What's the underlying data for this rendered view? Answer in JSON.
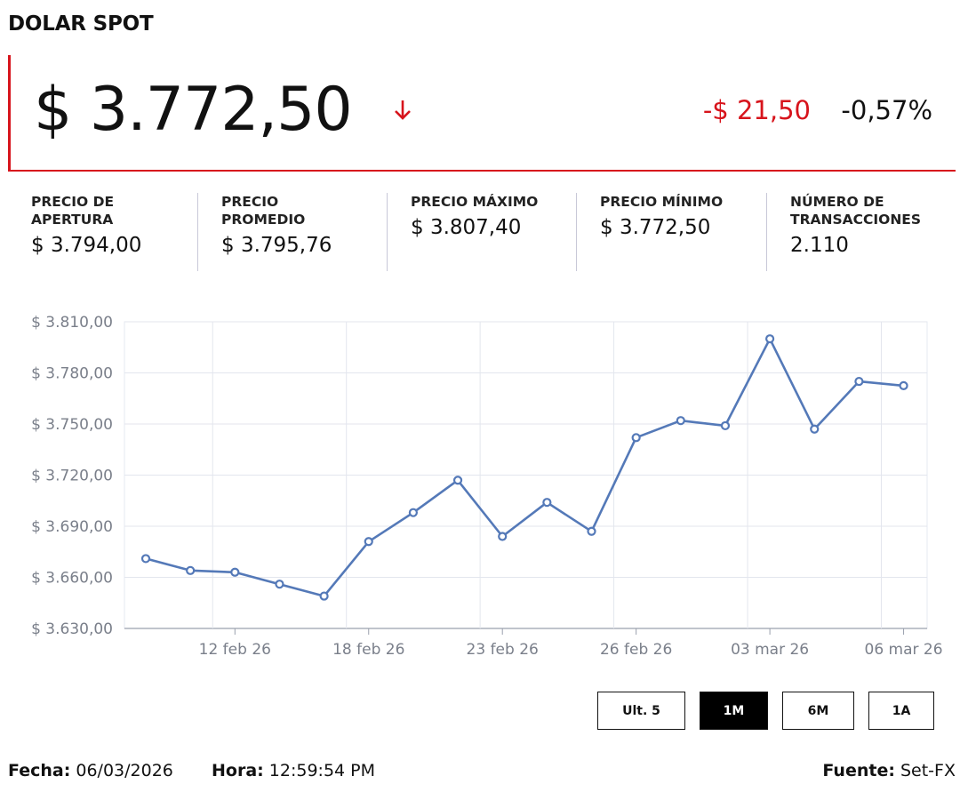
{
  "title": "DOLAR SPOT",
  "quote": {
    "price": "$ 3.772,50",
    "direction_icon": "arrow-down-icon",
    "change_abs": "-$ 21,50",
    "change_pct": "-0,57%",
    "down_color": "#d7141c"
  },
  "stats": [
    {
      "label_line1": "PRECIO DE",
      "label_line2": "APERTURA",
      "value": "$ 3.794,00"
    },
    {
      "label_line1": "PRECIO",
      "label_line2": "PROMEDIO",
      "value": "$ 3.795,76"
    },
    {
      "label_line1": "PRECIO MÁXIMO",
      "label_line2": "",
      "value": "$ 3.807,40"
    },
    {
      "label_line1": "PRECIO MÍNIMO",
      "label_line2": "",
      "value": "$ 3.772,50"
    },
    {
      "label_line1": "NÚMERO DE",
      "label_line2": "TRANSACCIONES",
      "value": "2.110"
    }
  ],
  "chart_data": {
    "type": "line",
    "title": "",
    "xlabel": "",
    "ylabel": "",
    "ylim": [
      3630,
      3810
    ],
    "y_ticks": [
      3630,
      3660,
      3690,
      3720,
      3750,
      3780,
      3810
    ],
    "y_tick_labels": [
      "$ 3.630,00",
      "$ 3.660,00",
      "$ 3.690,00",
      "$ 3.720,00",
      "$ 3.750,00",
      "$ 3.780,00",
      "$ 3.810,00"
    ],
    "x_tick_labels": [
      {
        "index": 2,
        "label": "12 feb 26"
      },
      {
        "index": 5,
        "label": "18 feb 26"
      },
      {
        "index": 8,
        "label": "23 feb 26"
      },
      {
        "index": 11,
        "label": "26 feb 26"
      },
      {
        "index": 14,
        "label": "03 mar 26"
      },
      {
        "index": 17,
        "label": "06 mar 26"
      }
    ],
    "series": [
      {
        "color": "#5479b8",
        "values": [
          3671,
          3664,
          3663,
          3656,
          3649,
          3681,
          3698,
          3717,
          3684,
          3704,
          3687,
          3742,
          3752,
          3749,
          3800,
          3747,
          3775,
          3772.5
        ]
      }
    ],
    "grid": true
  },
  "range_buttons": [
    {
      "label": "Ult. 5",
      "active": false
    },
    {
      "label": "1M",
      "active": true
    },
    {
      "label": "6M",
      "active": false
    },
    {
      "label": "1A",
      "active": false
    }
  ],
  "footer": {
    "fecha_label": "Fecha:",
    "fecha_value": "06/03/2026",
    "hora_label": "Hora:",
    "hora_value": "12:59:54 PM",
    "fuente_label": "Fuente:",
    "fuente_value": "Set-FX"
  }
}
